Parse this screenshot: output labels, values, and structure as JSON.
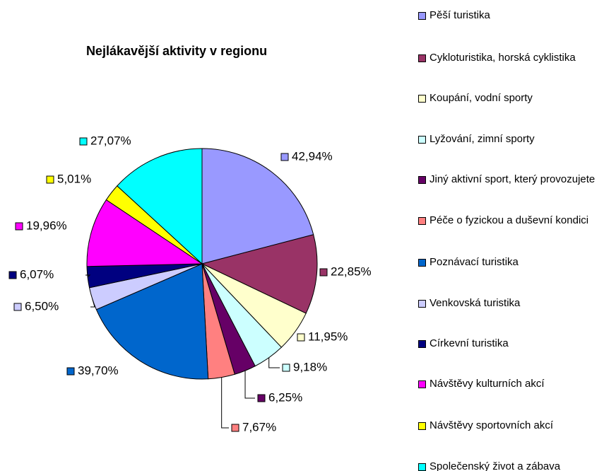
{
  "chart_data": {
    "type": "pie",
    "title": "Nejlákavější aktivity v regionu",
    "categories": [
      "Pěší turistika",
      "Cykloturistika, horská cyklistika",
      "Koupání, vodní sporty",
      "Lyžování, zimní sporty",
      "Jiný aktivní sport, který provozujete",
      "Péče o fyzickou a duševní kondici",
      "Poznávací turistika",
      "Venkovská turistika",
      "Církevní turistika",
      "Návštěvy kulturních akcí",
      "Návštěvy sportovních akcí",
      "Společenský život a zábava"
    ],
    "values": [
      42.94,
      22.85,
      11.95,
      9.18,
      6.25,
      7.67,
      39.7,
      6.5,
      6.07,
      19.96,
      5.01,
      27.07
    ],
    "value_labels": [
      "42,94%",
      "22,85%",
      "11,95%",
      "9,18%",
      "6,25%",
      "7,67%",
      "39,70%",
      "6,50%",
      "6,07%",
      "19,96%",
      "5,01%",
      "27,07%"
    ],
    "colors": [
      "#9999ff",
      "#993366",
      "#ffffcc",
      "#ccffff",
      "#660066",
      "#ff8080",
      "#0066cc",
      "#ccccff",
      "#000080",
      "#ff00ff",
      "#ffff00",
      "#00ffff"
    ]
  }
}
